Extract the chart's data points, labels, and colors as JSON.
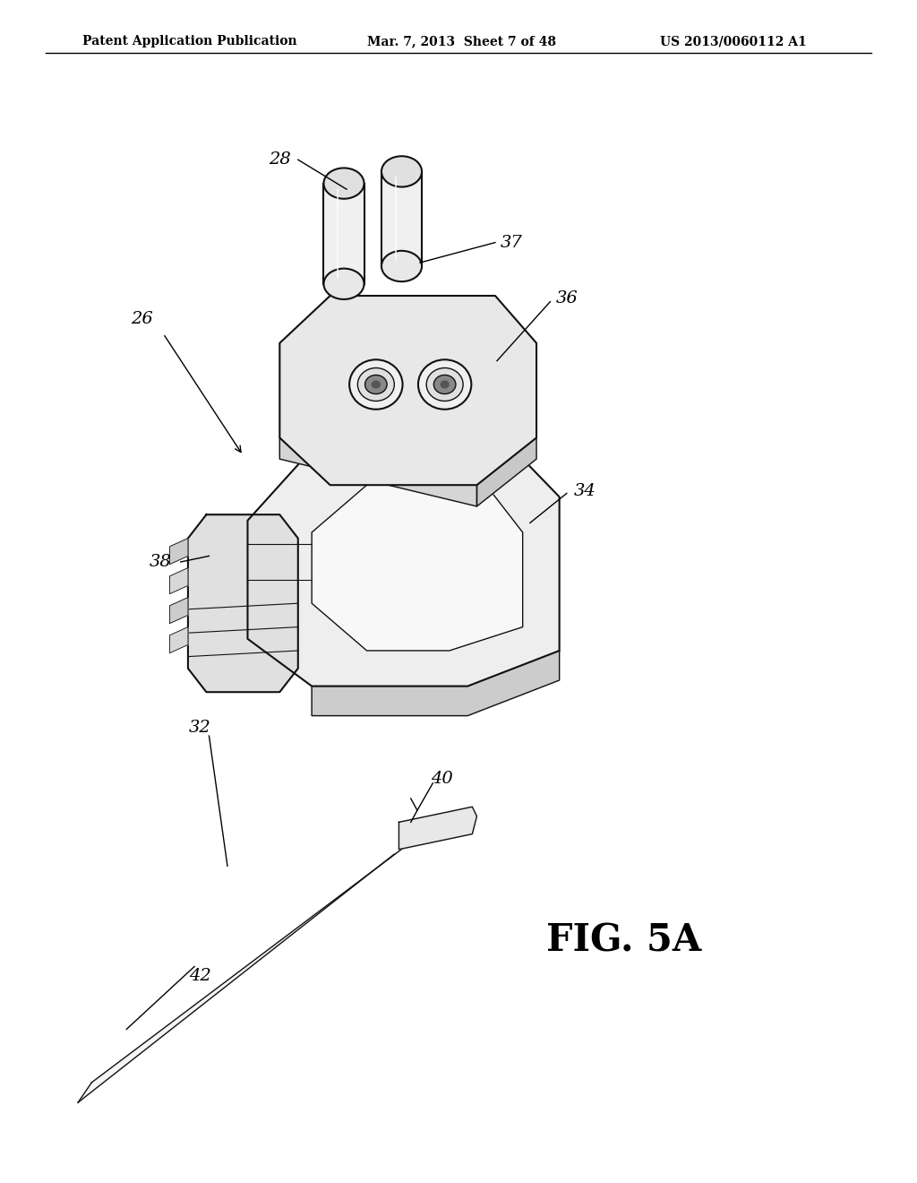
{
  "bg_color": "#ffffff",
  "header_left": "Patent Application Publication",
  "header_center": "Mar. 7, 2013  Sheet 7 of 48",
  "header_right": "US 2013/0060112 A1",
  "fig_label": "FIG. 5A",
  "dark": "#111111",
  "mid": "#777777",
  "light_fill": "#eeeeee",
  "plate_fill": "#e8e8e8",
  "side_fill": "#cccccc",
  "cable_fill": "#f5f5f5"
}
